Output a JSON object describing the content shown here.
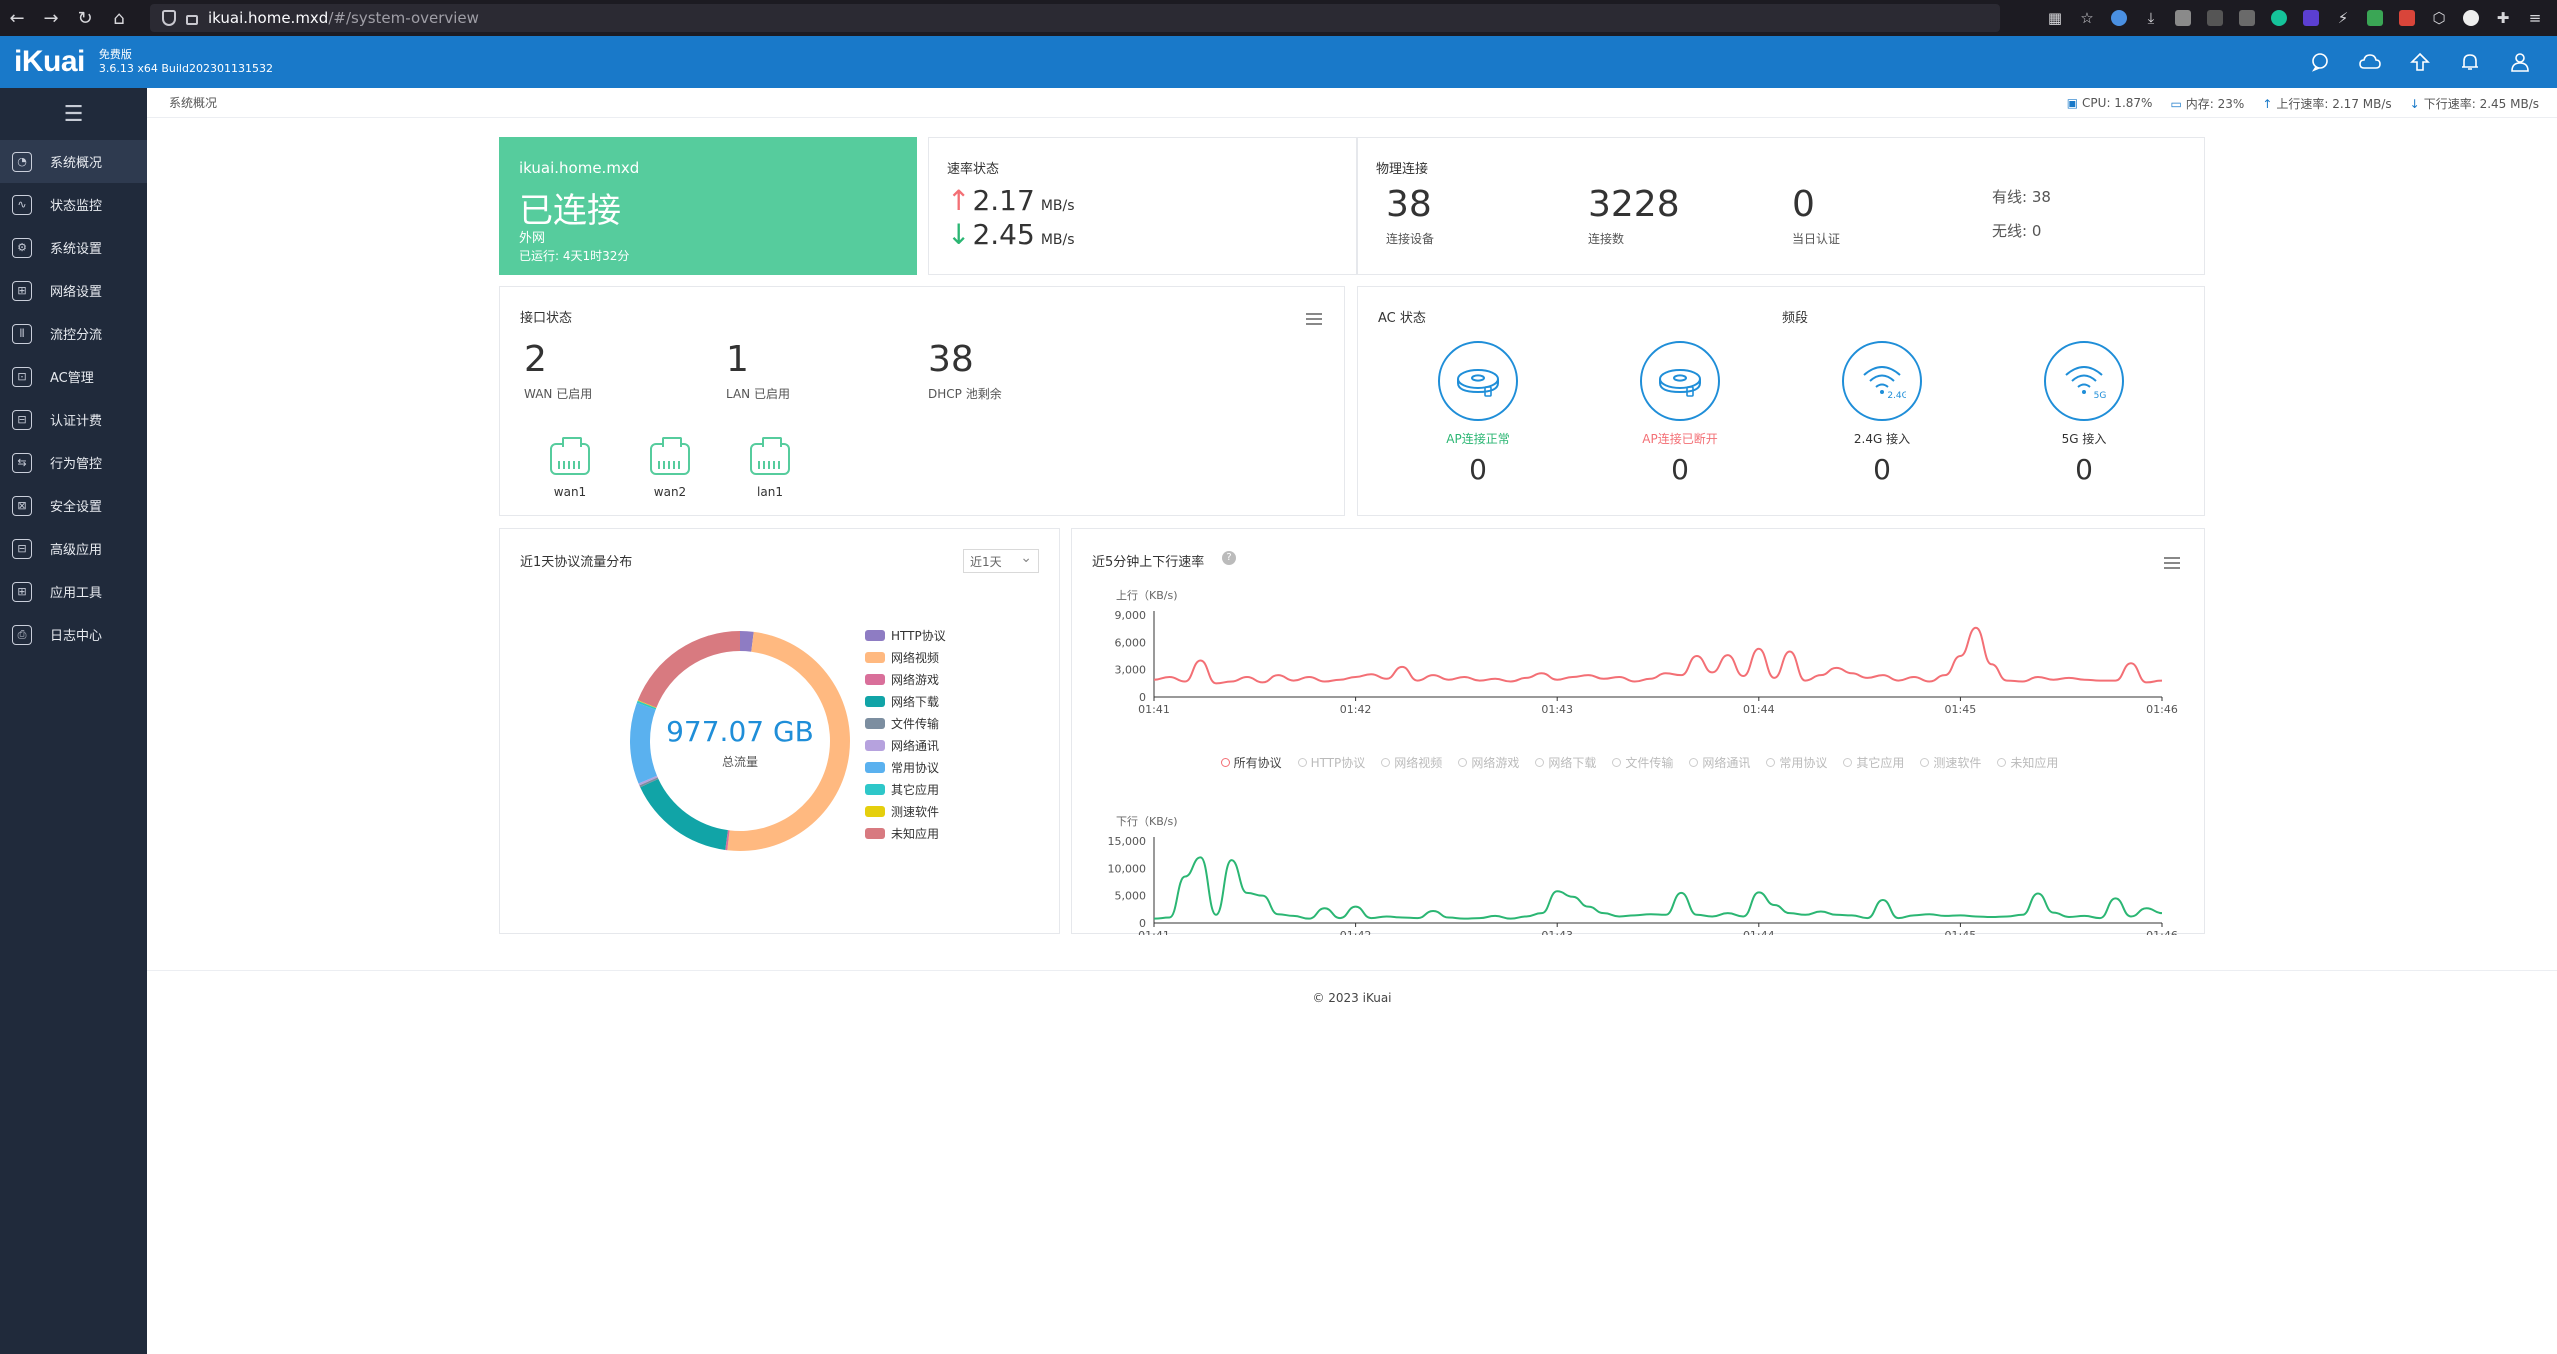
{
  "browser": {
    "url_host": "ikuai.home.mxd",
    "url_path": "/#/system-overview",
    "nav": [
      "back-icon",
      "forward-icon",
      "reload-icon",
      "home-icon"
    ]
  },
  "header": {
    "logo": "iKuai",
    "edition": "免费版",
    "version": "3.6.13 x64 Build202301131532",
    "icons": [
      "message-icon",
      "cloud-icon",
      "upgrade-icon",
      "bell-icon",
      "user-icon"
    ]
  },
  "sidebar": {
    "items": [
      {
        "label": "系统概况",
        "icon": "dashboard-icon",
        "active": true
      },
      {
        "label": "状态监控",
        "icon": "monitor-icon"
      },
      {
        "label": "系统设置",
        "icon": "gear-icon"
      },
      {
        "label": "网络设置",
        "icon": "network-icon"
      },
      {
        "label": "流控分流",
        "icon": "traffic-icon"
      },
      {
        "label": "AC管理",
        "icon": "ac-icon"
      },
      {
        "label": "认证计费",
        "icon": "auth-icon"
      },
      {
        "label": "行为管控",
        "icon": "behavior-icon"
      },
      {
        "label": "安全设置",
        "icon": "security-icon"
      },
      {
        "label": "高级应用",
        "icon": "advanced-icon"
      },
      {
        "label": "应用工具",
        "icon": "tools-icon"
      },
      {
        "label": "日志中心",
        "icon": "log-icon"
      }
    ]
  },
  "topbar": {
    "breadcrumb": "系统概况",
    "cpu": "CPU: 1.87%",
    "memory": "内存: 23%",
    "up": "上行速率: 2.17 MB/s",
    "down": "下行速率: 2.45 MB/s"
  },
  "wan_card": {
    "host": "ikuai.home.mxd",
    "status": "已连接",
    "label": "外网",
    "uptime": "已运行: 4天1时32分"
  },
  "rate_card": {
    "title": "速率状态",
    "up_value": "2.17",
    "down_value": "2.45",
    "unit": "MB/s"
  },
  "physical_card": {
    "title": "物理连接",
    "devices": "38",
    "devices_label": "连接设备",
    "conns": "3228",
    "conns_label": "连接数",
    "auth": "0",
    "auth_label": "当日认证",
    "wired": "有线: 38",
    "wireless": "无线: 0"
  },
  "iface_card": {
    "title": "接口状态",
    "wan": "2",
    "wan_label": "WAN 已启用",
    "lan": "1",
    "lan_label": "LAN 已启用",
    "dhcp": "38",
    "dhcp_label": "DHCP 池剩余",
    "ports": [
      "wan1",
      "wan2",
      "lan1"
    ]
  },
  "ac_card": {
    "title": "AC 状态",
    "band_title": "频段",
    "items": [
      {
        "label": "AP连接正常",
        "value": "0",
        "color": "#2bb673",
        "icon": "ap-ok-icon"
      },
      {
        "label": "AP连接已断开",
        "value": "0",
        "color": "#f36f75",
        "icon": "ap-disconnected-icon"
      },
      {
        "label": "2.4G 接入",
        "value": "0",
        "color": "#333333",
        "icon": "wifi-2g-icon",
        "badge": "2.4G"
      },
      {
        "label": "5G 接入",
        "value": "0",
        "color": "#333333",
        "icon": "wifi-5g-icon",
        "badge": "5G"
      }
    ]
  },
  "protocol_card": {
    "title": "近1天协议流量分布",
    "range": "近1天",
    "total": "977.07 GB",
    "total_label": "总流量",
    "chart_data": {
      "type": "pie",
      "categories": [
        "HTTP协议",
        "网络视频",
        "网络游戏",
        "网络下载",
        "文件传输",
        "网络通讯",
        "常用协议",
        "其它应用",
        "测速软件",
        "未知应用"
      ],
      "values": [
        2,
        50,
        0.3,
        16,
        0.3,
        0.3,
        12,
        0.3,
        0.1,
        19
      ],
      "colors": [
        "#8e7cc3",
        "#ffb980",
        "#d96f9a",
        "#11a4a7",
        "#7c8ea0",
        "#b6a2de",
        "#5ab1ef",
        "#2ec7c9",
        "#e5cf0d",
        "#d87a80"
      ]
    }
  },
  "rate_chart_card": {
    "title": "近5分钟上下行速率",
    "legend": [
      "所有协议",
      "HTTP协议",
      "网络视频",
      "网络游戏",
      "网络下载",
      "文件传输",
      "网络通讯",
      "常用协议",
      "其它应用",
      "测速软件",
      "未知应用"
    ],
    "chart_data": [
      {
        "type": "line",
        "ylabel": "上行（KB/s)",
        "ylim": [
          0,
          9000
        ],
        "yticks": [
          "9,000",
          "6,000",
          "3,000",
          "0"
        ],
        "xticks": [
          "01:41",
          "01:42",
          "01:43",
          "01:44",
          "01:45",
          "01:46"
        ],
        "color": "#f36f75",
        "series": [
          {
            "values": [
              1900,
              2200,
              1700,
              4000,
              1500,
              1700,
              2200,
              1600,
              2400,
              1800,
              2200,
              1700,
              1900,
              2200,
              2500,
              2000,
              3300,
              1800,
              2400,
              1900,
              2200,
              1800,
              2000,
              1700,
              2100,
              2600,
              1900,
              2200,
              2400,
              2000,
              2200,
              1700,
              2000,
              2600,
              2400,
              4500,
              2700,
              4600,
              2300,
              5300,
              2100,
              5000,
              1800,
              2400,
              3200,
              2600,
              2100,
              2400,
              1800,
              2200,
              1700,
              2400,
              4500,
              7600,
              3600,
              1800,
              1700,
              2200,
              1900,
              2100,
              1900,
              1800,
              1800,
              3700,
              1600,
              1800
            ]
          }
        ]
      },
      {
        "type": "line",
        "ylabel": "下行（KB/s)",
        "ylim": [
          0,
          15000
        ],
        "yticks": [
          "15,000",
          "10,000",
          "5,000",
          "0"
        ],
        "xticks": [
          "01:41",
          "01:42",
          "01:43",
          "01:44",
          "01:45",
          "01:46"
        ],
        "color": "#2bb673",
        "series": [
          {
            "values": [
              800,
              1000,
              8500,
              12000,
              1500,
              11500,
              5500,
              5000,
              1600,
              1300,
              800,
              2700,
              900,
              3000,
              900,
              1200,
              1000,
              900,
              2200,
              1000,
              800,
              900,
              1300,
              800,
              1200,
              1800,
              5800,
              4800,
              3000,
              1800,
              1200,
              1400,
              1600,
              1500,
              5500,
              1500,
              1200,
              1800,
              1200,
              5600,
              3300,
              1800,
              1500,
              2100,
              1500,
              1400,
              900,
              4200,
              900,
              1400,
              1600,
              1300,
              1400,
              1200,
              1100,
              1200,
              1500,
              5400,
              1900,
              1100,
              1300,
              900,
              4500,
              1200,
              2700,
              1800
            ]
          }
        ]
      }
    ]
  },
  "footer": "© 2023 iKuai"
}
